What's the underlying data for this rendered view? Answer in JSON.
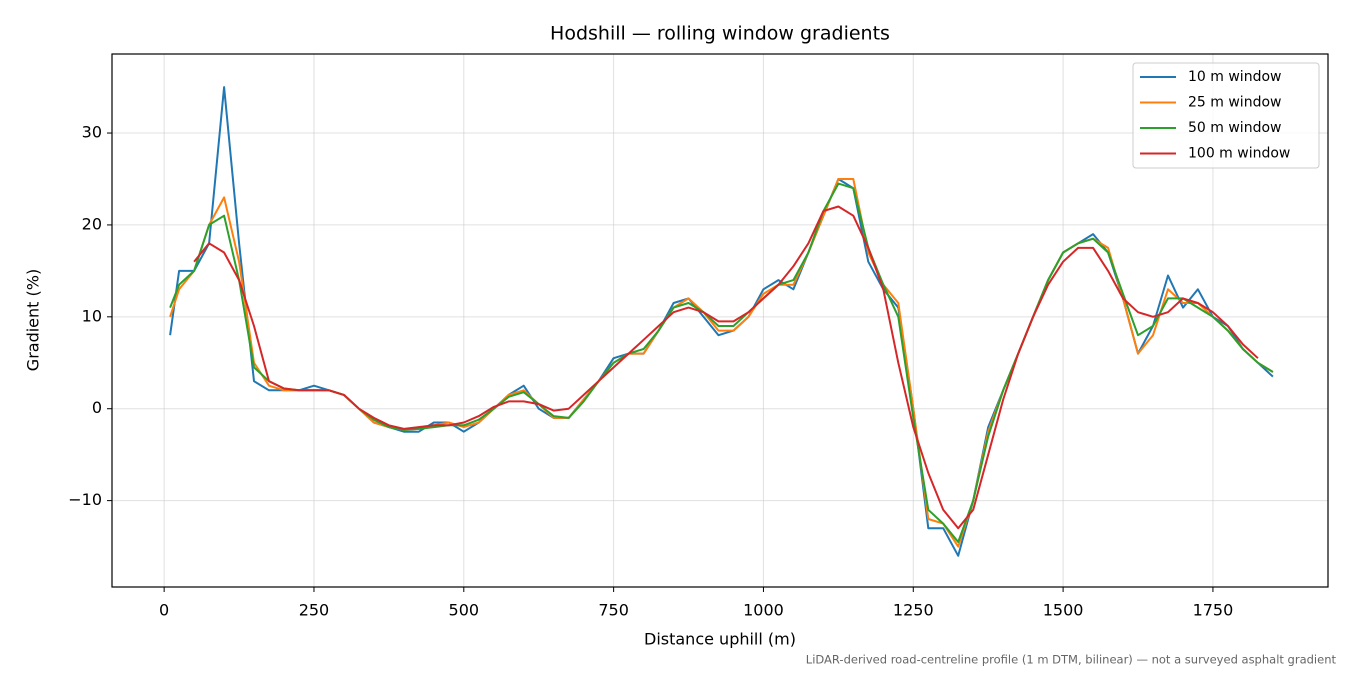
{
  "chart_data": {
    "type": "line",
    "title": "Hodshill — rolling window gradients",
    "xlabel": "Distance uphill (m)",
    "ylabel": "Gradient (%)",
    "footnote": "LiDAR-derived road-centreline profile (1 m DTM, bilinear) — not a surveyed asphalt gradient",
    "x": [
      10,
      25,
      50,
      75,
      100,
      125,
      150,
      175,
      200,
      225,
      250,
      275,
      300,
      325,
      350,
      375,
      400,
      425,
      450,
      475,
      500,
      525,
      550,
      575,
      600,
      625,
      650,
      675,
      700,
      725,
      750,
      775,
      800,
      825,
      850,
      875,
      900,
      925,
      950,
      975,
      1000,
      1025,
      1050,
      1075,
      1100,
      1125,
      1150,
      1175,
      1200,
      1225,
      1250,
      1275,
      1300,
      1325,
      1350,
      1375,
      1400,
      1425,
      1450,
      1475,
      1500,
      1525,
      1550,
      1575,
      1600,
      1625,
      1650,
      1675,
      1700,
      1725,
      1750,
      1775,
      1800,
      1825,
      1850
    ],
    "series": [
      {
        "name": "10 m window",
        "color": "#1f77b4",
        "values": [
          8,
          15,
          15,
          18,
          35,
          18,
          3,
          2,
          2,
          2,
          2.5,
          2,
          1.5,
          0,
          -1.5,
          -2,
          -2.5,
          -2.5,
          -1.5,
          -1.5,
          -2.5,
          -1.5,
          0,
          1.5,
          2.5,
          0,
          -1,
          -1,
          1,
          3,
          5.5,
          6,
          6,
          8.5,
          11.5,
          12,
          10,
          8,
          8.5,
          10,
          13,
          14,
          13,
          17,
          21,
          25,
          24,
          16,
          13,
          11,
          0,
          -13,
          -13,
          -16,
          -10,
          -2,
          2,
          6,
          10,
          14,
          17,
          18,
          19,
          17,
          12,
          6,
          9,
          14.5,
          11,
          13,
          10,
          9,
          6.5,
          5,
          3.5
        ]
      },
      {
        "name": "25 m window",
        "color": "#ff7f0e",
        "values": [
          10,
          13,
          15,
          20,
          23,
          16,
          5,
          2.5,
          2,
          2,
          2,
          2,
          1.5,
          0,
          -1.5,
          -2,
          -2.3,
          -2.2,
          -1.8,
          -1.5,
          -2,
          -1.5,
          0,
          1.5,
          2,
          0.5,
          -1,
          -1,
          1,
          3,
          5,
          6,
          6,
          8.5,
          11,
          12,
          10.5,
          8.5,
          8.5,
          10,
          12.5,
          13.5,
          13.5,
          17,
          21,
          25,
          25,
          17,
          13.5,
          11.5,
          0,
          -12,
          -12.5,
          -15,
          -10,
          -2.5,
          2,
          6,
          10,
          14,
          17,
          18,
          18.5,
          17.5,
          12,
          6,
          8,
          13,
          11.5,
          11.5,
          10,
          8.5,
          6.5,
          5,
          4
        ]
      },
      {
        "name": "50 m window",
        "color": "#2ca02c",
        "values": [
          11,
          13.5,
          15,
          20,
          21,
          14,
          4.5,
          3,
          2.2,
          2,
          2,
          2,
          1.5,
          0,
          -1.2,
          -2,
          -2.3,
          -2.2,
          -2,
          -1.8,
          -1.8,
          -1.2,
          0,
          1.3,
          1.8,
          0.5,
          -0.8,
          -1,
          0.8,
          3,
          5,
          6,
          6.5,
          8.5,
          11,
          11.5,
          10.5,
          9,
          9,
          10.5,
          12,
          13.5,
          14,
          17,
          21.5,
          24.5,
          24,
          17.5,
          13.5,
          10,
          -1,
          -11,
          -12.5,
          -14.5,
          -10,
          -3,
          2,
          6,
          10,
          14,
          17,
          18,
          18.5,
          17,
          12.5,
          8,
          9,
          12,
          12,
          11,
          10,
          8.5,
          6.5,
          5,
          4
        ]
      },
      {
        "name": "100 m window",
        "color": "#d62728",
        "values": [
          null,
          null,
          16,
          18,
          17,
          14,
          9,
          3,
          2.2,
          2,
          2,
          2,
          1.5,
          0,
          -1,
          -1.8,
          -2.2,
          -2,
          -1.8,
          -1.8,
          -1.5,
          -0.8,
          0.2,
          0.8,
          0.8,
          0.5,
          -0.2,
          0,
          1.5,
          3,
          4.5,
          6,
          7.5,
          9,
          10.5,
          11,
          10.5,
          9.5,
          9.5,
          10.5,
          12,
          13.5,
          15.5,
          18,
          21.5,
          22,
          21,
          17.5,
          13,
          5,
          -2,
          -7,
          -11,
          -13,
          -11,
          -5,
          1,
          6,
          10,
          13.5,
          16,
          17.5,
          17.5,
          15,
          12,
          10.5,
          10,
          10.5,
          12,
          11.5,
          10.5,
          9,
          7,
          5.5,
          null
        ]
      }
    ],
    "xlim": [
      -87,
      1942
    ],
    "ylim": [
      -19.4,
      38.6
    ],
    "xticks": [
      0,
      250,
      500,
      750,
      1000,
      1250,
      1500,
      1750
    ],
    "yticks": [
      {
        "value": -10,
        "label": "−10"
      },
      0,
      10,
      20,
      30
    ],
    "grid": true,
    "legend": "upper right"
  }
}
